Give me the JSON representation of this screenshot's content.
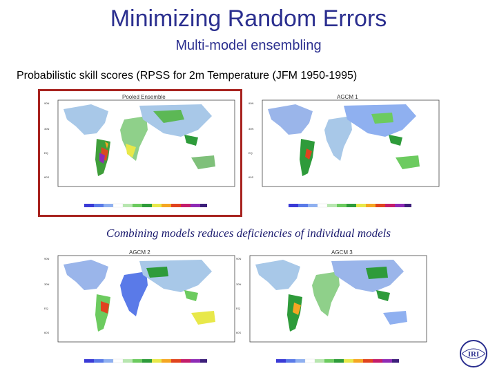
{
  "slide": {
    "title": "Minimizing Random Errors",
    "subtitle": "Multi-model ensembling",
    "heading": "Probabilistic skill scores (RPSS for 2m Temperature (JFM 1950-1995)",
    "caption": "Combining models reduces deficiencies of individual models"
  },
  "panels": [
    {
      "label": "Pooled Ensemble",
      "highlighted": true
    },
    {
      "label": "AGCM 1",
      "highlighted": false
    },
    {
      "label": "AGCM 2",
      "highlighted": false
    },
    {
      "label": "AGCM 3",
      "highlighted": false
    }
  ],
  "colorbar_colors": [
    "#3a3ad6",
    "#5a7ae8",
    "#8fb0f0",
    "#ffffff",
    "#b8e6b0",
    "#6ccb5f",
    "#2e9b3a",
    "#e8e84a",
    "#f5a623",
    "#e0431f",
    "#c41d6b",
    "#8e2bb5",
    "#3d1f7a"
  ],
  "logo": {
    "text": "IRI"
  }
}
